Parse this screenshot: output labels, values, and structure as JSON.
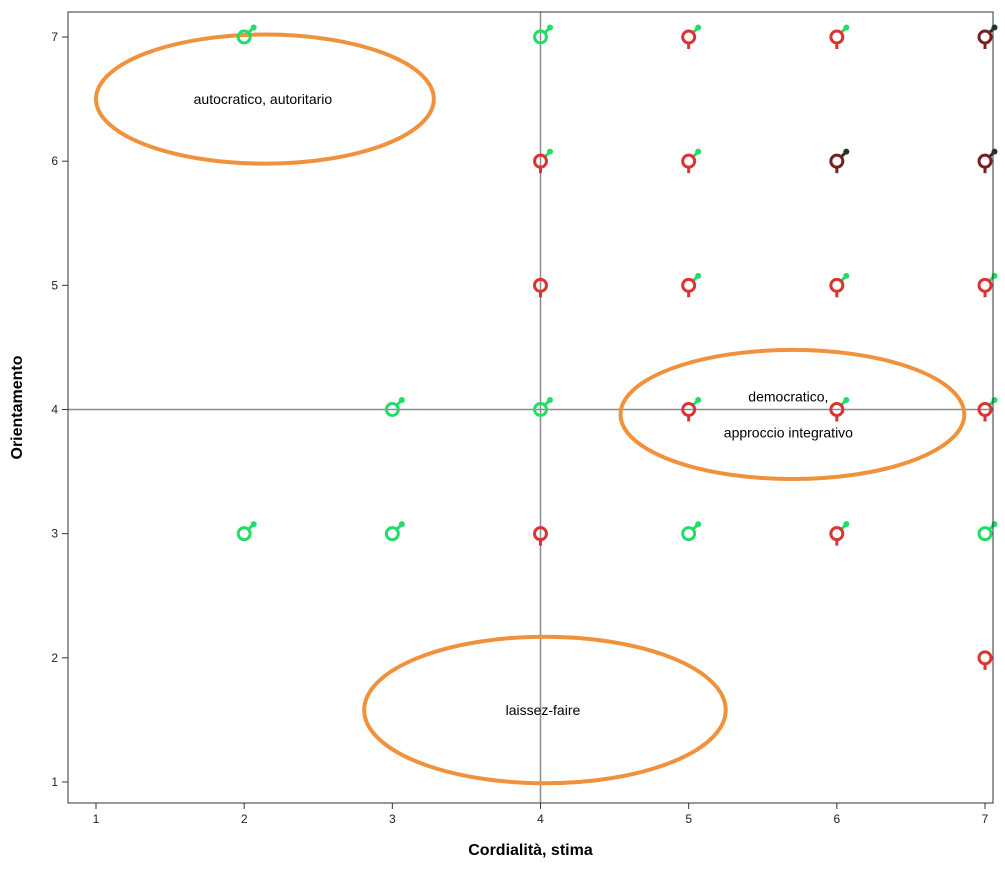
{
  "chart_data": {
    "type": "scatter",
    "xlabel": "Cordialità, stima",
    "ylabel": "Orientamento",
    "xlim": [
      0.8,
      7.05
    ],
    "ylim": [
      0.75,
      7.2
    ],
    "x_ticks": [
      1,
      2,
      3,
      4,
      5,
      6,
      7
    ],
    "y_ticks": [
      1,
      2,
      3,
      4,
      5,
      6,
      7
    ],
    "reference_lines": {
      "x": 4,
      "y": 4
    },
    "grid": false,
    "legend": "none",
    "colors": {
      "male": "#22dd66",
      "female": "#dd3333",
      "overlap": "#7a1f1f",
      "ellipse": "#f0923c",
      "reference_line": "#8a8a8a"
    },
    "points": [
      {
        "x": 2,
        "y": 7,
        "symbol": "male-icon"
      },
      {
        "x": 4,
        "y": 7,
        "symbol": "male-icon"
      },
      {
        "x": 5,
        "y": 7,
        "symbol": "female-icon",
        "overlay": "male-icon"
      },
      {
        "x": 6,
        "y": 7,
        "symbol": "female-icon",
        "overlay": "male-icon"
      },
      {
        "x": 7,
        "y": 7,
        "symbol": "female-icon",
        "overlay": "male-icon",
        "dark": true
      },
      {
        "x": 4,
        "y": 6,
        "symbol": "female-icon",
        "overlay": "male-icon"
      },
      {
        "x": 5,
        "y": 6,
        "symbol": "female-icon",
        "overlay": "male-icon"
      },
      {
        "x": 6,
        "y": 6,
        "symbol": "female-icon",
        "overlay": "male-icon",
        "dark": true
      },
      {
        "x": 7,
        "y": 6,
        "symbol": "female-icon",
        "overlay": "male-icon",
        "dark": true
      },
      {
        "x": 4,
        "y": 5,
        "symbol": "female-icon"
      },
      {
        "x": 5,
        "y": 5,
        "symbol": "female-icon",
        "overlay": "male-icon"
      },
      {
        "x": 6,
        "y": 5,
        "symbol": "female-icon",
        "overlay": "male-icon"
      },
      {
        "x": 7,
        "y": 5,
        "symbol": "female-icon",
        "overlay": "male-icon"
      },
      {
        "x": 3,
        "y": 4,
        "symbol": "male-icon"
      },
      {
        "x": 4,
        "y": 4,
        "symbol": "male-icon"
      },
      {
        "x": 5,
        "y": 4,
        "symbol": "female-icon",
        "overlay": "male-icon"
      },
      {
        "x": 6,
        "y": 4,
        "symbol": "female-icon",
        "overlay": "male-icon"
      },
      {
        "x": 7,
        "y": 4,
        "symbol": "female-icon",
        "overlay": "male-icon"
      },
      {
        "x": 2,
        "y": 3,
        "symbol": "male-icon"
      },
      {
        "x": 3,
        "y": 3,
        "symbol": "male-icon"
      },
      {
        "x": 4,
        "y": 3,
        "symbol": "female-icon"
      },
      {
        "x": 5,
        "y": 3,
        "symbol": "male-icon"
      },
      {
        "x": 6,
        "y": 3,
        "symbol": "female-icon",
        "overlay": "male-icon"
      },
      {
        "x": 7,
        "y": 3,
        "symbol": "male-icon"
      },
      {
        "x": 7,
        "y": 2,
        "symbol": "female-icon"
      }
    ],
    "annotations": [
      {
        "name": "autocratic",
        "lines": [
          "autocratico, autoritario"
        ],
        "cx": 2.14,
        "cy": 6.5,
        "rx": 1.14,
        "ry": 0.52
      },
      {
        "name": "democratic",
        "lines": [
          "democratico,",
          "approccio integrativo"
        ],
        "cx": 5.7,
        "cy": 3.96,
        "rx": 1.16,
        "ry": 0.52
      },
      {
        "name": "laissez-faire",
        "lines": [
          "laissez-faire"
        ],
        "cx": 4.03,
        "cy": 1.58,
        "rx": 1.22,
        "ry": 0.59
      }
    ]
  }
}
